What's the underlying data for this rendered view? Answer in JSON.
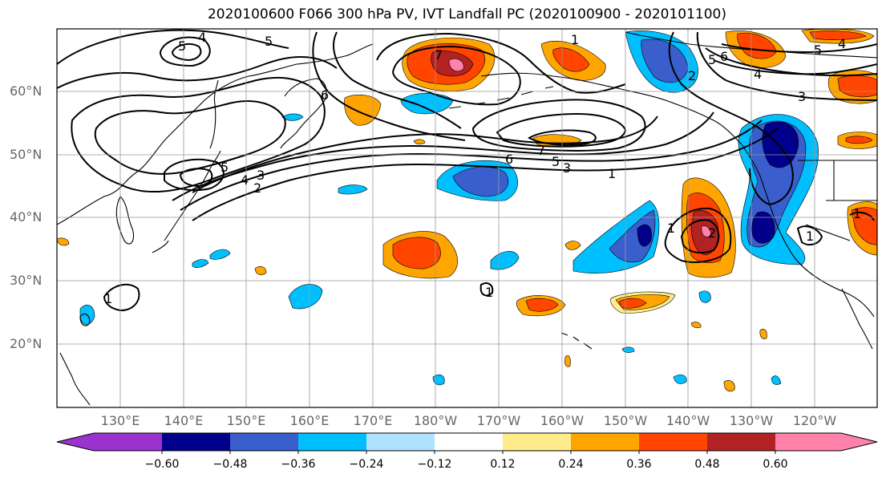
{
  "title": "2020100600 F066 300 hPa PV, IVT Landfall PC (2020100900 - 2020101100)",
  "lat_labels": [
    "60°N",
    "50°N",
    "40°N",
    "30°N",
    "20°N"
  ],
  "lon_labels": [
    "130°E",
    "140°E",
    "150°E",
    "160°E",
    "170°E",
    "180°W",
    "170°W",
    "160°W",
    "150°W",
    "140°W",
    "130°W",
    "120°W"
  ],
  "colorbar": {
    "colors": [
      "#9a32cd",
      "#00008b",
      "#3a5fcd",
      "#00bfff",
      "#b0e2ff",
      "#ffffff",
      "#ffec8b",
      "#ffa500",
      "#ff4500",
      "#b22222",
      "#ff82ab"
    ],
    "tick_labels": [
      "−0.60",
      "−0.48",
      "−0.36",
      "−0.24",
      "−0.12",
      "0.12",
      "0.24",
      "0.36",
      "0.48",
      "0.60"
    ]
  },
  "contour_labels": [
    "5",
    "4",
    "5",
    "6",
    "7",
    "1",
    "2",
    "3",
    "4",
    "5",
    "6",
    "5",
    "4",
    "6",
    "5",
    "3",
    "1",
    "7",
    "1",
    "1",
    "2",
    "1",
    "1",
    "2",
    "3",
    "4",
    "5",
    "1"
  ],
  "colors": {
    "frame": "#000000",
    "grid": "#999999",
    "axis_text": "#666666"
  }
}
